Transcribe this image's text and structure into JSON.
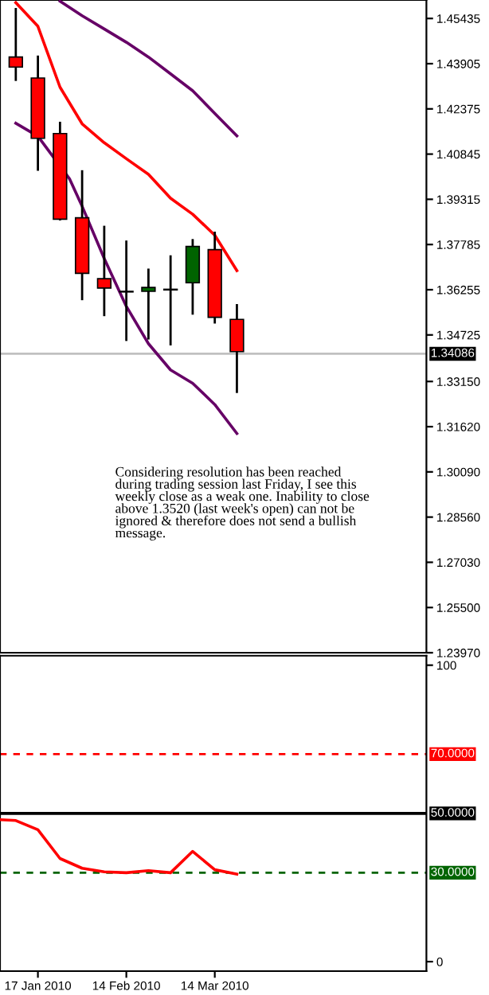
{
  "chart_data": [
    {
      "type": "candlestick",
      "x": [
        "2010-01-10",
        "2010-01-17",
        "2010-01-24",
        "2010-01-31",
        "2010-02-07",
        "2010-02-14",
        "2010-02-21",
        "2010-02-28",
        "2010-03-07",
        "2010-03-14",
        "2010-03-21"
      ],
      "ohlc": [
        [
          1.4413,
          1.4579,
          1.4332,
          1.4379
        ],
        [
          1.4342,
          1.4418,
          1.4028,
          1.4138
        ],
        [
          1.4154,
          1.4194,
          1.386,
          1.3864
        ],
        [
          1.3869,
          1.403,
          1.359,
          1.3681
        ],
        [
          1.3663,
          1.3842,
          1.3536,
          1.3631
        ],
        [
          1.362,
          1.3792,
          1.3452,
          1.3618
        ],
        [
          1.362,
          1.3697,
          1.3457,
          1.3633
        ],
        [
          1.3627,
          1.3742,
          1.3437,
          1.3625
        ],
        [
          1.3649,
          1.3797,
          1.3541,
          1.3772
        ],
        [
          1.3761,
          1.3822,
          1.3511,
          1.3532
        ],
        [
          1.3525,
          1.3577,
          1.3276,
          1.3416
        ]
      ],
      "colors": [
        "#ff0000",
        "#ff0000",
        "#ff0000",
        "#ff0000",
        "#ff0000",
        "#000000",
        "#006400",
        "#000000",
        "#006400",
        "#ff0000",
        "#ff0000"
      ],
      "series": [
        {
          "type": "line",
          "color": "#ff0000",
          "x": [
            "2010-01-10",
            "2010-01-17",
            "2010-01-24",
            "2010-01-31",
            "2010-02-07",
            "2010-02-14",
            "2010-02-21",
            "2010-02-28",
            "2010-03-07",
            "2010-03-14",
            "2010-03-21"
          ],
          "values": [
            1.4597,
            1.4517,
            1.4311,
            1.4187,
            1.4123,
            1.4069,
            1.4016,
            1.3935,
            1.3881,
            1.381,
            1.369
          ]
        },
        {
          "type": "line",
          "color": "#660066",
          "x": [
            "2010-01-24",
            "2010-01-31",
            "2010-02-07",
            "2010-02-14",
            "2010-02-21",
            "2010-02-28",
            "2010-03-07",
            "2010-03-14",
            "2010-03-21"
          ],
          "values": [
            1.4602,
            1.4553,
            1.4508,
            1.4463,
            1.4413,
            1.4356,
            1.4299,
            1.4222,
            1.4146
          ]
        },
        {
          "type": "line",
          "color": "#660066",
          "x": [
            "2010-01-10",
            "2010-01-17",
            "2010-01-27",
            "2010-01-31",
            "2010-02-07",
            "2010-02-14",
            "2010-02-21",
            "2010-02-28",
            "2010-03-07",
            "2010-03-14",
            "2010-03-21"
          ],
          "values": [
            1.4189,
            1.4145,
            1.4001,
            1.3908,
            1.3731,
            1.3569,
            1.3443,
            1.3354,
            1.3309,
            1.3237,
            1.3139
          ]
        }
      ],
      "xlim": [
        "2010-01-05",
        "2010-05-20"
      ],
      "ylim": [
        1.2397,
        1.4606
      ],
      "yticks": [
        1.45435,
        1.43905,
        1.42375,
        1.40845,
        1.39315,
        1.37785,
        1.36255,
        1.34725,
        {
          "value": 1.3315,
          "label": "1.33150"
        },
        {
          "value": 1.3162,
          "label": "1.31620"
        },
        {
          "value": 1.3009,
          "label": "1.30090"
        },
        {
          "value": 1.2856,
          "label": "1.28560"
        },
        {
          "value": 1.2703,
          "label": "1.27030"
        },
        {
          "value": 1.255,
          "label": "1.25500"
        },
        {
          "value": 1.2397,
          "label": "1.23970"
        }
      ],
      "ref_lines": [
        {
          "axis": "y",
          "value": 1.34086,
          "label": "1.34086",
          "color": "#c0c0c0",
          "line_style": "solid"
        }
      ],
      "annotations": [
        "Considering resolution has been reached\nduring trading session last Friday, I see this\nweekly close as a weak one. Inability to close\nabove 1.3520 (last week's open) can not be\nignored & therefore does not send a bullish\nmessage."
      ],
      "tick_labels": "y",
      "grid": false
    },
    {
      "type": "line",
      "x": [
        "2010-01-05",
        "2010-01-10",
        "2010-01-17",
        "2010-01-24",
        "2010-01-31",
        "2010-02-07",
        "2010-02-14",
        "2010-02-21",
        "2010-02-28",
        "2010-03-07",
        "2010-03-14",
        "2010-03-21"
      ],
      "series": [
        {
          "color": "#ff0000",
          "values": [
            47.9,
            47.6,
            44.5,
            34.8,
            31.5,
            30.3,
            30.0,
            30.7,
            30.0,
            37.2,
            31.0,
            29.5
          ]
        }
      ],
      "xlim": [
        "2010-01-05",
        "2010-05-20"
      ],
      "xticks": [
        {
          "value": "2010-01-17",
          "label": "17 Jan 2010"
        },
        {
          "value": "2010-02-14",
          "label": "14 Feb 2010"
        },
        {
          "value": "2010-03-14",
          "label": "14 Mar 2010"
        }
      ],
      "ylim": [
        -3.2,
        103.2
      ],
      "yticks": [
        0,
        100
      ],
      "ref_lines": [
        {
          "axis": "y",
          "value": 70,
          "label": "70.0000",
          "color": "#ff0000",
          "line_style": "dashed"
        },
        {
          "axis": "y",
          "value": 50,
          "label": "50.0000",
          "color": "#000000",
          "line_style": "solid"
        },
        {
          "axis": "y",
          "value": 30,
          "label": "30.0000",
          "color": "#006400",
          "line_style": "dashed"
        }
      ],
      "grid": false
    }
  ]
}
